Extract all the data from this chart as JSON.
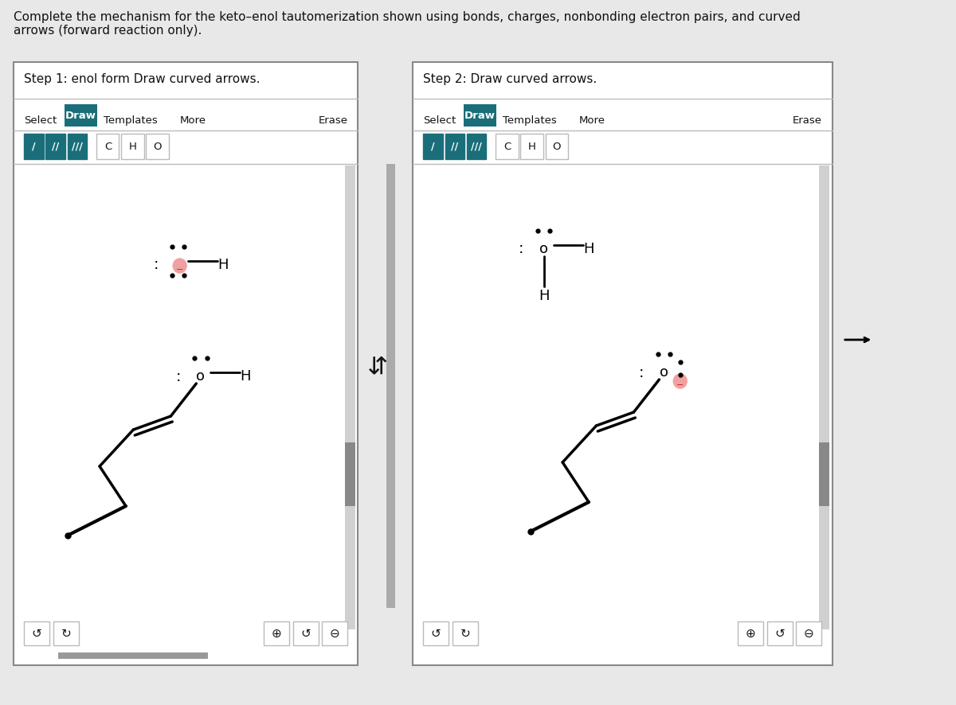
{
  "bg_color": "#e8e8e8",
  "panel_bg": "#ffffff",
  "white": "#ffffff",
  "teal": "#1a6e7a",
  "light_gray": "#f0f0f0",
  "text_color": "#111111",
  "border_color": "#bbbbbb",
  "dark_border": "#888888",
  "pink_highlight": "#f0a0a0",
  "scrollbar_track": "#d0d0d0",
  "scrollbar_thumb": "#888888",
  "title_text": "Complete the mechanism for the keto–enol tautomerization shown using bonds, charges, nonbonding electron pairs, and curved\narrows (forward reaction only).",
  "step1_title": "Step 1: enol form Draw curved arrows.",
  "step2_title": "Step 2: Draw curved arrows.",
  "fig_width": 12.0,
  "fig_height": 8.86,
  "dpi": 100
}
